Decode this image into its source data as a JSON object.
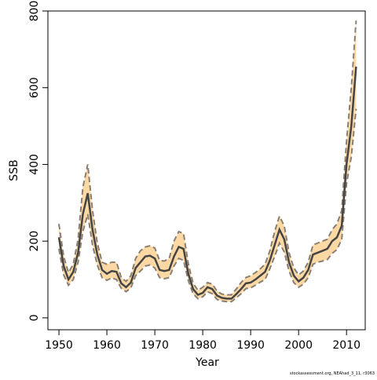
{
  "chart_data": {
    "type": "line",
    "xlabel": "Year",
    "ylabel": "SSB",
    "footnote": "stockassessment.org, NEAhad_3_11, r3063",
    "x": [
      1950,
      1951,
      1952,
      1953,
      1954,
      1955,
      1956,
      1957,
      1958,
      1959,
      1960,
      1961,
      1962,
      1963,
      1964,
      1965,
      1966,
      1967,
      1968,
      1969,
      1970,
      1971,
      1972,
      1973,
      1974,
      1975,
      1976,
      1977,
      1978,
      1979,
      1980,
      1981,
      1982,
      1983,
      1984,
      1985,
      1986,
      1987,
      1988,
      1989,
      1990,
      1991,
      1992,
      1993,
      1994,
      1995,
      1996,
      1997,
      1998,
      1999,
      2000,
      2001,
      2002,
      2003,
      2004,
      2005,
      2006,
      2007,
      2008,
      2009,
      2010,
      2011,
      2012
    ],
    "values": [
      210,
      135,
      100,
      120,
      170,
      270,
      325,
      230,
      165,
      125,
      115,
      122,
      120,
      90,
      80,
      92,
      130,
      145,
      160,
      162,
      155,
      125,
      122,
      125,
      160,
      185,
      180,
      115,
      75,
      60,
      65,
      80,
      75,
      58,
      52,
      50,
      50,
      62,
      75,
      90,
      92,
      100,
      110,
      120,
      150,
      190,
      230,
      205,
      145,
      110,
      95,
      105,
      125,
      165,
      170,
      175,
      180,
      200,
      210,
      240,
      400,
      500,
      655
    ],
    "upper": [
      245,
      160,
      118,
      140,
      205,
      340,
      400,
      280,
      195,
      145,
      140,
      145,
      145,
      105,
      95,
      110,
      155,
      175,
      185,
      188,
      182,
      150,
      148,
      155,
      200,
      225,
      220,
      140,
      90,
      72,
      80,
      92,
      88,
      70,
      62,
      60,
      60,
      75,
      92,
      105,
      110,
      118,
      128,
      140,
      175,
      225,
      265,
      240,
      170,
      130,
      112,
      122,
      145,
      190,
      195,
      200,
      205,
      230,
      245,
      280,
      460,
      600,
      775
    ],
    "lower": [
      180,
      112,
      85,
      100,
      145,
      225,
      270,
      190,
      138,
      105,
      98,
      104,
      100,
      77,
      68,
      78,
      110,
      122,
      135,
      138,
      130,
      105,
      102,
      105,
      135,
      155,
      150,
      97,
      63,
      50,
      55,
      68,
      63,
      48,
      44,
      42,
      42,
      52,
      63,
      76,
      78,
      85,
      93,
      100,
      128,
      160,
      195,
      172,
      122,
      92,
      80,
      88,
      105,
      140,
      145,
      148,
      152,
      168,
      178,
      205,
      350,
      420,
      545
    ],
    "color": "#444444",
    "band_color": "#fcd9a4",
    "bound_color": "#8a7f72",
    "xlim": [
      1947.7,
      2013.9
    ],
    "xticks": [
      1950,
      1960,
      1970,
      1980,
      1990,
      2000,
      2010
    ],
    "ylim": [
      -31,
      800
    ],
    "yticks": [
      0,
      200,
      400,
      600,
      800
    ]
  }
}
